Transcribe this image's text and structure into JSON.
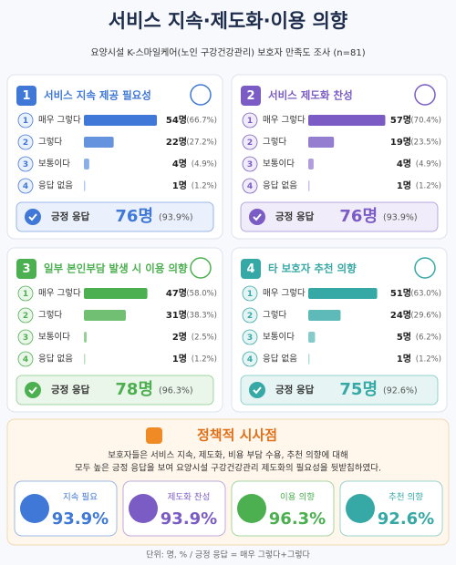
{
  "header": {
    "title": "서비스 지속·제도화·이용 의향",
    "subtitle": "요양시설 K-스마일케어(노인 구강건강관리) 보호자 만족도 조사 (n=81)"
  },
  "panels": [
    {
      "number": "1",
      "title": "서비스 지속 제공 필요성",
      "color": "#3f78d6",
      "light": "#eaf1fc",
      "rows": [
        {
          "rank": "1",
          "label": "매우 그렇다",
          "count": "54명",
          "pct": 66.7,
          "pct_label": "(66.7%)"
        },
        {
          "rank": "2",
          "label": "그렇다",
          "count": "22명",
          "pct": 27.2,
          "pct_label": "(27.2%)"
        },
        {
          "rank": "3",
          "label": "보통이다",
          "count": "4명",
          "pct": 4.9,
          "pct_label": "(4.9%)"
        },
        {
          "rank": "4",
          "label": "응답 없음",
          "count": "1명",
          "pct": 1.2,
          "pct_label": "(1.2%)"
        }
      ],
      "positive": {
        "label": "긍정 응답",
        "count": "76명",
        "pct_label": "(93.9%)"
      }
    },
    {
      "number": "2",
      "title": "서비스 제도화 찬성",
      "color": "#7a5cc4",
      "light": "#f1ecfa",
      "rows": [
        {
          "rank": "1",
          "label": "매우 그렇다",
          "count": "57명",
          "pct": 70.4,
          "pct_label": "(70.4%)"
        },
        {
          "rank": "2",
          "label": "그렇다",
          "count": "19명",
          "pct": 23.5,
          "pct_label": "(23.5%)"
        },
        {
          "rank": "3",
          "label": "보통이다",
          "count": "4명",
          "pct": 4.9,
          "pct_label": "(4.9%)"
        },
        {
          "rank": "4",
          "label": "응답 없음",
          "count": "1명",
          "pct": 1.2,
          "pct_label": "(1.2%)"
        }
      ],
      "positive": {
        "label": "긍정 응답",
        "count": "76명",
        "pct_label": "(93.9%)"
      }
    },
    {
      "number": "3",
      "title": "일부 본인부담 발생 시 이용 의향",
      "color": "#4caf50",
      "light": "#ebf6ea",
      "rows": [
        {
          "rank": "1",
          "label": "매우 그렇다",
          "count": "47명",
          "pct": 58.0,
          "pct_label": "(58.0%)"
        },
        {
          "rank": "2",
          "label": "그렇다",
          "count": "31명",
          "pct": 38.3,
          "pct_label": "(38.3%)"
        },
        {
          "rank": "3",
          "label": "보통이다",
          "count": "2명",
          "pct": 2.5,
          "pct_label": "(2.5%)"
        },
        {
          "rank": "4",
          "label": "응답 없음",
          "count": "1명",
          "pct": 1.2,
          "pct_label": "(1.2%)"
        }
      ],
      "positive": {
        "label": "긍정 응답",
        "count": "78명",
        "pct_label": "(96.3%)"
      }
    },
    {
      "number": "4",
      "title": "타 보호자 추천 의향",
      "color": "#36a9a6",
      "light": "#e6f5f4",
      "rows": [
        {
          "rank": "1",
          "label": "매우 그렇다",
          "count": "51명",
          "pct": 63.0,
          "pct_label": "(63.0%)"
        },
        {
          "rank": "2",
          "label": "그렇다",
          "count": "24명",
          "pct": 29.6,
          "pct_label": "(29.6%)"
        },
        {
          "rank": "3",
          "label": "보통이다",
          "count": "5명",
          "pct": 6.2,
          "pct_label": "(6.2%)"
        },
        {
          "rank": "4",
          "label": "응답 없음",
          "count": "1명",
          "pct": 1.2,
          "pct_label": "(1.2%)"
        }
      ],
      "positive": {
        "label": "긍정 응답",
        "count": "75명",
        "pct_label": "(92.6%)"
      }
    }
  ],
  "implications": {
    "title": "정책적 시사점",
    "lines": [
      "보호자들은 서비스 지속, 제도화, 비용 부담 수용, 추천 의향에 대해",
      "모두 높은 긍정 응답을 보여 요양시설 구강건강관리 제도화의 필요성을 뒷받침하였다."
    ],
    "cards": [
      {
        "label": "지속 필요",
        "value": "93.9%"
      },
      {
        "label": "제도화 찬성",
        "value": "93.9%"
      },
      {
        "label": "이용 의향",
        "value": "96.3%"
      },
      {
        "label": "추천 의향",
        "value": "92.6%"
      }
    ]
  },
  "footer": "단위: 명, % / 긍정 응답 = 매우 그렇다+그렇다"
}
